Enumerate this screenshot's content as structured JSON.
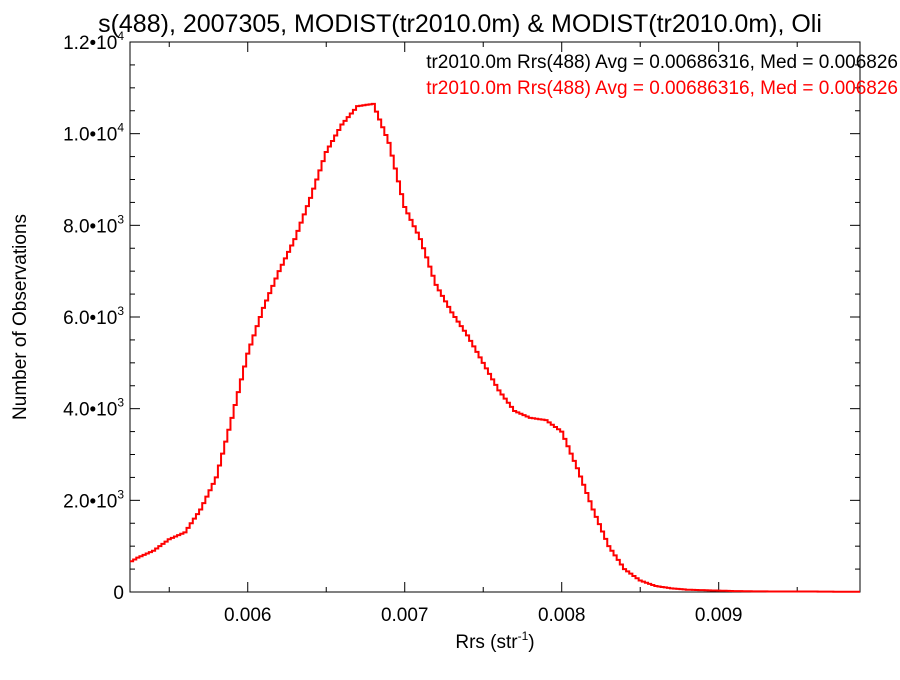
{
  "chart_data": {
    "type": "line",
    "title": "s(488), 2007305, MODIST(tr2010.0m) & MODIST(tr2010.0m), Oli",
    "xlabel": "Rrs (str",
    "xlabel_sup": "-1",
    "xlabel_close": ")",
    "ylabel": "Number of Observations",
    "xlim": [
      0.00525,
      0.0099
    ],
    "ylim": [
      0,
      12000
    ],
    "x_ticks": [
      {
        "value": 0.006,
        "label": "0.006"
      },
      {
        "value": 0.007,
        "label": "0.007"
      },
      {
        "value": 0.008,
        "label": "0.008"
      },
      {
        "value": 0.009,
        "label": "0.009"
      }
    ],
    "y_ticks": [
      {
        "value": 0,
        "mant": "0",
        "exp": ""
      },
      {
        "value": 2000,
        "mant": "2.0•10",
        "exp": "3"
      },
      {
        "value": 4000,
        "mant": "4.0•10",
        "exp": "3"
      },
      {
        "value": 6000,
        "mant": "6.0•10",
        "exp": "3"
      },
      {
        "value": 8000,
        "mant": "8.0•10",
        "exp": "3"
      },
      {
        "value": 10000,
        "mant": "1.0•10",
        "exp": "4"
      },
      {
        "value": 12000,
        "mant": "1.2•10",
        "exp": "4"
      }
    ],
    "legend_position": "top-right",
    "annotations": [
      {
        "text": "tr2010.0m Rrs(488) Avg = 0.00686316, Med = 0.006826",
        "color": "#000000"
      },
      {
        "text": "tr2010.0m Rrs(488) Avg = 0.00686316, Med = 0.006826",
        "color": "#ff0000"
      }
    ],
    "series": [
      {
        "color": "#ff0000",
        "style": "step",
        "x": [
          0.00525,
          0.0053,
          0.0054,
          0.0055,
          0.0056,
          0.0057,
          0.0058,
          0.0059,
          0.006,
          0.0061,
          0.0062,
          0.0063,
          0.0064,
          0.0065,
          0.0066,
          0.0067,
          0.0068,
          0.0069,
          0.007,
          0.0071,
          0.0072,
          0.0073,
          0.0074,
          0.0075,
          0.0076,
          0.0077,
          0.0078,
          0.0079,
          0.008,
          0.0081,
          0.0082,
          0.0083,
          0.0084,
          0.0085,
          0.0086,
          0.0087,
          0.0088,
          0.0089,
          0.009,
          0.0091,
          0.0092,
          0.0094,
          0.0096,
          0.0098,
          0.0099
        ],
        "y": [
          650,
          750,
          900,
          1150,
          1300,
          1800,
          2500,
          3800,
          5200,
          6200,
          7000,
          7700,
          8600,
          9600,
          10200,
          10600,
          10650,
          9800,
          8400,
          7700,
          6700,
          6100,
          5600,
          5000,
          4400,
          3950,
          3800,
          3750,
          3500,
          2700,
          1800,
          1000,
          500,
          250,
          130,
          80,
          50,
          40,
          30,
          20,
          15,
          10,
          10,
          5,
          5
        ]
      }
    ]
  }
}
